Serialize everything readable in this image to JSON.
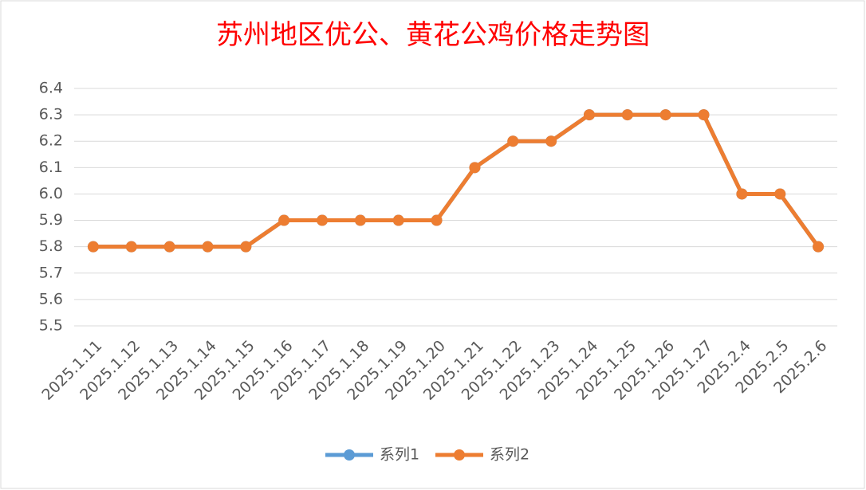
{
  "chart_data": {
    "type": "line",
    "title": "苏州地区优公、黄花公鸡价格走势图",
    "categories": [
      "2025.1.11",
      "2025.1.12",
      "2025.1.13",
      "2025.1.14",
      "2025.1.15",
      "2025.1.16",
      "2025.1.17",
      "2025.1.18",
      "2025.1.19",
      "2025.1.20",
      "2025.1.21",
      "2025.1.22",
      "2025.1.23",
      "2025.1.24",
      "2025.1.25",
      "2025.1.26",
      "2025.1.27",
      "2025.2.4",
      "2025.2.5",
      "2025.2.6"
    ],
    "series": [
      {
        "name": "系列1",
        "color": "#5b9bd5",
        "values": [
          5.8,
          5.8,
          5.8,
          5.8,
          5.8,
          5.9,
          5.9,
          5.9,
          5.9,
          5.9,
          6.1,
          6.2,
          6.2,
          6.3,
          6.3,
          6.3,
          6.3,
          6.0,
          6.0,
          5.8
        ]
      },
      {
        "name": "系列2",
        "color": "#ed7d31",
        "values": [
          5.8,
          5.8,
          5.8,
          5.8,
          5.8,
          5.9,
          5.9,
          5.9,
          5.9,
          5.9,
          6.1,
          6.2,
          6.2,
          6.3,
          6.3,
          6.3,
          6.3,
          6.0,
          6.0,
          5.8
        ]
      }
    ],
    "ylim": [
      5.5,
      6.4
    ],
    "yticks": [
      5.5,
      5.6,
      5.7,
      5.8,
      5.9,
      {
        "value": 6,
        "label": "6.0"
      },
      6.1,
      6.2,
      6.3,
      6.4
    ],
    "grid": true,
    "legend": "bottom"
  }
}
